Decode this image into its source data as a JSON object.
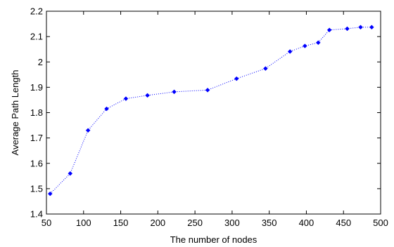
{
  "chart_data": {
    "type": "line",
    "xlabel": "The number of nodes",
    "ylabel": "Average Path Length",
    "xlim": [
      50,
      500
    ],
    "ylim": [
      1.4,
      2.2
    ],
    "xticks": [
      50,
      100,
      150,
      200,
      250,
      300,
      350,
      400,
      450,
      500
    ],
    "yticks": [
      1.4,
      1.5,
      1.6,
      1.7,
      1.8,
      1.9,
      2.0,
      2.1,
      2.2
    ],
    "xtick_labels": [
      "50",
      "100",
      "150",
      "200",
      "250",
      "300",
      "350",
      "400",
      "450",
      "500"
    ],
    "ytick_labels": [
      "1.4",
      "1.5",
      "1.6",
      "1.7",
      "1.8",
      "1.9",
      "2",
      "2.1",
      "2.2"
    ],
    "grid": false,
    "series": [
      {
        "line_style": "dotted",
        "marker": "diamond",
        "color": "#0000ff",
        "x": [
          55,
          82,
          106,
          131,
          157,
          186,
          222,
          267,
          306,
          345,
          378,
          398,
          416,
          431,
          455,
          473,
          488
        ],
        "y": [
          1.48,
          1.56,
          1.73,
          1.815,
          1.855,
          1.868,
          1.882,
          1.889,
          1.934,
          1.974,
          2.041,
          2.063,
          2.076,
          2.126,
          2.131,
          2.137,
          2.137
        ]
      }
    ]
  }
}
